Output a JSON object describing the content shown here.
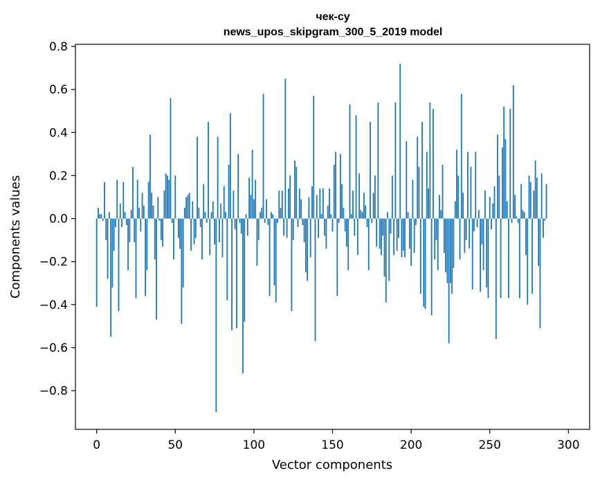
{
  "chart_data": {
    "type": "bar",
    "title_lines": [
      "чек-су",
      "news_upos_skipgram_300_5_2019 model"
    ],
    "xlabel": "Vector components",
    "ylabel": "Components values",
    "xlim": [
      -13.5,
      313.5
    ],
    "ylim": [
      -0.98,
      0.81
    ],
    "x_ticks": [
      0,
      50,
      100,
      150,
      200,
      250,
      300
    ],
    "x_tick_labels": [
      "0",
      "50",
      "100",
      "150",
      "200",
      "250",
      "300"
    ],
    "y_ticks": [
      -0.8,
      -0.6,
      -0.4,
      -0.2,
      0.0,
      0.2,
      0.4,
      0.6,
      0.8
    ],
    "y_tick_labels": [
      "−0.8",
      "−0.6",
      "−0.4",
      "−0.2",
      "0.0",
      "0.2",
      "0.4",
      "0.6",
      "0.8"
    ],
    "bar_color": "#1f77b4",
    "grid": false,
    "values": [
      -0.41,
      0.05,
      0.02,
      0.02,
      -0.01,
      0.17,
      -0.1,
      -0.28,
      0.03,
      -0.55,
      -0.32,
      -0.15,
      -0.04,
      0.18,
      -0.43,
      0.07,
      -0.04,
      0.17,
      0.03,
      -0.03,
      -0.24,
      -0.11,
      0.04,
      0.24,
      -0.11,
      -0.37,
      0.18,
      0.05,
      -0.06,
      0.12,
      0.06,
      -0.36,
      -0.24,
      0.17,
      0.39,
      0.12,
      0.06,
      -0.19,
      -0.47,
      0.1,
      -0.01,
      -0.1,
      -0.13,
      0.13,
      0.21,
      0.2,
      0.18,
      0.56,
      -0.02,
      -0.19,
      0.2,
      0.0,
      -0.09,
      -0.14,
      -0.49,
      -0.32,
      0.05,
      0.1,
      0.11,
      0.12,
      -0.15,
      0.08,
      -0.12,
      -0.09,
      0.38,
      0.05,
      -0.04,
      -0.19,
      0.16,
      0.03,
      -0.02,
      0.45,
      -0.17,
      0.03,
      0.08,
      -0.12,
      -0.9,
      0.38,
      -0.11,
      0.07,
      -0.18,
      0.15,
      0.03,
      -0.38,
      0.25,
      0.49,
      -0.52,
      0.13,
      -0.05,
      -0.51,
      0.3,
      -0.02,
      -0.07,
      -0.72,
      -0.48,
      0.02,
      -0.08,
      0.19,
      0.11,
      0.32,
      0.09,
      0.18,
      -0.22,
      -0.1,
      0.03,
      0.05,
      0.58,
      -0.02,
      0.09,
      -0.03,
      -0.36,
      0.03,
      0.02,
      -0.31,
      -0.39,
      -0.02,
      0.13,
      0.05,
      0.13,
      -0.08,
      0.65,
      -0.09,
      0.14,
      0.2,
      -0.43,
      -0.1,
      0.27,
      0.24,
      -0.04,
      0.14,
      0.09,
      -0.03,
      -0.11,
      -0.25,
      -0.29,
      0.1,
      -0.18,
      0.15,
      0.57,
      -0.57,
      0.11,
      -0.09,
      0.14,
      0.02,
      0.14,
      -0.08,
      -0.14,
      0.06,
      0.14,
      0.02,
      -0.06,
      0.25,
      0.31,
      -0.36,
      -0.02,
      0.3,
      0.16,
      0.05,
      -0.06,
      -0.13,
      -0.24,
      0.53,
      0.02,
      0.13,
      -0.08,
      0.48,
      -0.17,
      0.21,
      0.04,
      0.03,
      0.12,
      0.06,
      -0.04,
      -0.24,
      0.45,
      -0.02,
      0.12,
      0.2,
      -0.13,
      0.54,
      -0.14,
      -0.17,
      -0.08,
      -0.27,
      -0.39,
      0.03,
      -0.29,
      -0.07,
      0.2,
      -0.17,
      0.54,
      -0.15,
      -0.09,
      0.72,
      -0.18,
      -0.15,
      -0.18,
      0.36,
      0.03,
      -0.14,
      -0.22,
      0.18,
      -0.16,
      -0.03,
      0.38,
      0.24,
      -0.35,
      0.45,
      -0.41,
      -0.42,
      0.31,
      0.14,
      0.54,
      -0.45,
      0.51,
      -0.19,
      -0.1,
      -0.24,
      0.11,
      0.04,
      0.25,
      -0.16,
      -0.25,
      -0.3,
      -0.58,
      -0.3,
      -0.35,
      -0.23,
      0.08,
      0.32,
      0.2,
      -0.19,
      0.58,
      0.12,
      -0.16,
      -0.1,
      0.31,
      -0.14,
      0.24,
      -0.33,
      -0.06,
      0.31,
      -0.04,
      0.04,
      -0.34,
      -0.12,
      -0.24,
      0.13,
      -0.32,
      -0.37,
      0.1,
      -0.05,
      0.07,
      0.15,
      -0.56,
      0.39,
      0.2,
      -0.37,
      0.33,
      0.52,
      0.37,
      0.08,
      -0.37,
      0.51,
      -0.02,
      0.62,
      0.11,
      0.01,
      -0.02,
      -0.37,
      0.16,
      0.04,
      0.03,
      -0.17,
      -0.4,
      0.2,
      0.17,
      -0.35,
      0.13,
      0.27,
      0.19,
      -0.22,
      -0.51,
      0.21,
      -0.09,
      -0.01,
      0.16
    ]
  }
}
